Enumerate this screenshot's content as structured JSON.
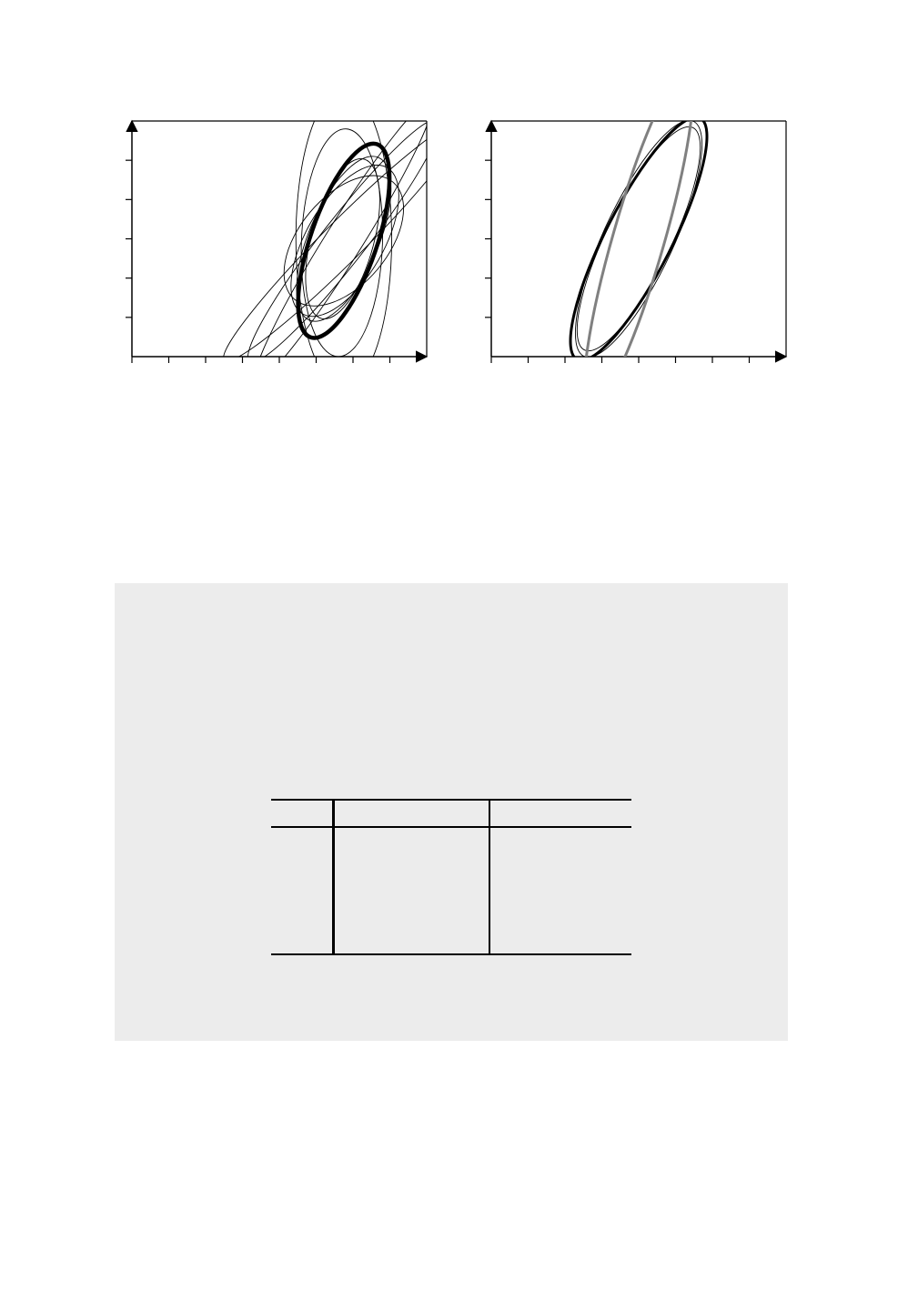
{
  "colors": {
    "curve": "#000000",
    "reference_curve": "#808080",
    "panel_background": "#ececec"
  },
  "chart_data": [
    {
      "type": "line",
      "panel": "left",
      "title": "",
      "xlabel": "",
      "ylabel": "",
      "x_ticks": 8,
      "y_ticks": 5,
      "grid": false,
      "legend": "none",
      "series": [
        {
          "kind": "ellipse",
          "cx": 5.75,
          "cy": 2.95,
          "rx": 0.9,
          "ry": 2.6,
          "rotation_deg": 19,
          "weight": "bold"
        },
        {
          "kind": "ellipse",
          "cx": 5.78,
          "cy": 2.95,
          "rx": 1.05,
          "ry": 2.15,
          "rotation_deg": 30,
          "weight": "thin"
        },
        {
          "kind": "ellipse",
          "cx": 5.75,
          "cy": 2.95,
          "rx": 1.2,
          "ry": 1.95,
          "rotation_deg": 40,
          "weight": "thin"
        },
        {
          "kind": "ellipse",
          "cx": 5.75,
          "cy": 3.0,
          "rx": 0.95,
          "ry": 2.25,
          "rotation_deg": 23,
          "weight": "thin"
        },
        {
          "kind": "ellipse",
          "cx": 5.72,
          "cy": 3.0,
          "rx": 0.85,
          "ry": 2.1,
          "rotation_deg": 15,
          "weight": "thin"
        },
        {
          "kind": "ellipse",
          "cx": 5.7,
          "cy": 2.9,
          "rx": 1.1,
          "ry": 2.9,
          "rotation_deg": 2,
          "weight": "thin"
        },
        {
          "kind": "ellipse",
          "cx": 5.75,
          "cy": 3.0,
          "rx": 1.3,
          "ry": 3.8,
          "rotation_deg": 0,
          "weight": "thin"
        },
        {
          "kind": "ellipse",
          "cx": 5.75,
          "cy": 2.95,
          "rx": 0.6,
          "ry": 3.9,
          "rotation_deg": 38,
          "weight": "thin"
        },
        {
          "kind": "ellipse",
          "cx": 5.75,
          "cy": 2.95,
          "rx": 0.55,
          "ry": 4.3,
          "rotation_deg": 45,
          "weight": "thin"
        },
        {
          "kind": "ellipse",
          "cx": 5.75,
          "cy": 2.95,
          "rx": 0.5,
          "ry": 4.2,
          "rotation_deg": 32,
          "weight": "thin"
        }
      ]
    },
    {
      "type": "line",
      "panel": "right",
      "title": "",
      "xlabel": "",
      "ylabel": "",
      "x_ticks": 8,
      "y_ticks": 5,
      "grid": false,
      "legend": "none",
      "series": [
        {
          "kind": "ellipse",
          "cx": 4.0,
          "cy": 3.0,
          "rx": 0.9,
          "ry": 3.45,
          "rotation_deg": 27,
          "weight": "bold"
        },
        {
          "kind": "ellipse",
          "cx": 4.0,
          "cy": 3.0,
          "rx": 0.95,
          "ry": 3.3,
          "rotation_deg": 25,
          "weight": "thin"
        },
        {
          "kind": "ellipse",
          "cx": 4.0,
          "cy": 3.0,
          "rx": 0.88,
          "ry": 3.15,
          "rotation_deg": 26,
          "weight": "thin"
        },
        {
          "kind": "ellipse",
          "cx": 4.0,
          "cy": 3.0,
          "rx": 0.7,
          "ry": 4.5,
          "rotation_deg": 16,
          "weight": "gray"
        }
      ]
    }
  ],
  "table": {
    "header": [
      "",
      "",
      ""
    ],
    "rows": [
      [
        "",
        "",
        ""
      ]
    ]
  }
}
